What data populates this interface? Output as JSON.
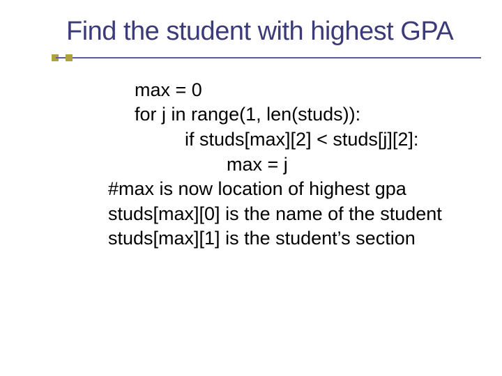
{
  "slide": {
    "title": "Find the student with highest GPA",
    "title_color": "#3b3b7a",
    "underline_color": "#5b5b9c",
    "accent_square_color": "#b0a040",
    "background_color": "#ffffff",
    "title_fontsize": 38,
    "body_fontsize": 27,
    "body_color": "#000000",
    "lines": [
      "max = 0",
      "for j in range(1, len(studs)):",
      "if studs[max][2] < studs[j][2]:",
      "max = j",
      "#max is now location of highest gpa",
      "studs[max][0] is the name of the student",
      "studs[max][1] is the student’s section"
    ]
  }
}
